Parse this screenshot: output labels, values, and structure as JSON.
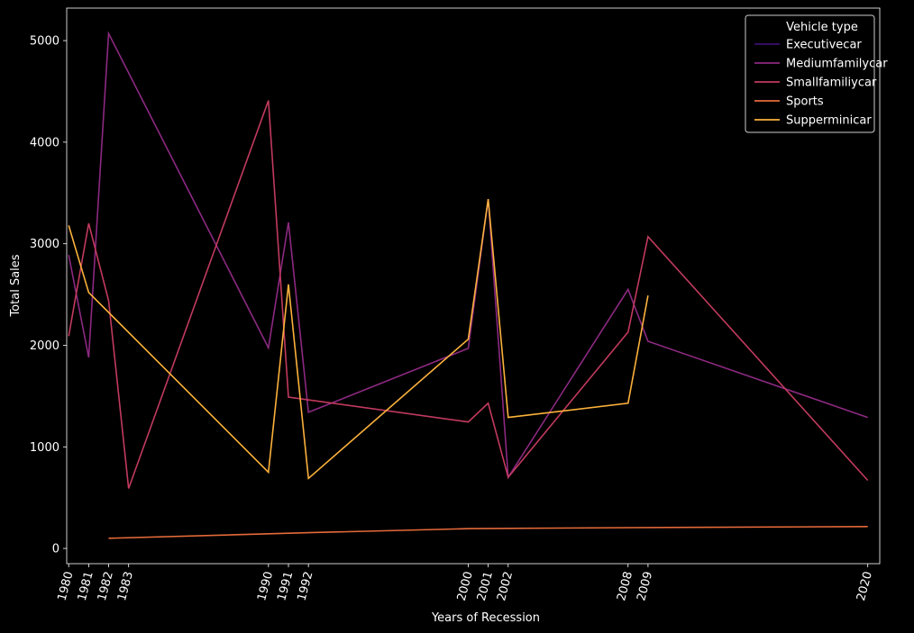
{
  "chart_data": {
    "type": "line",
    "title": "",
    "xlabel": "Years of Recession",
    "ylabel": "Total Sales",
    "x_ticks": [
      1980,
      1981,
      1982,
      1983,
      1990,
      1991,
      1992,
      2000,
      2001,
      2002,
      2008,
      2009,
      2020
    ],
    "y_ticks": [
      0,
      1000,
      2000,
      3000,
      4000,
      5000
    ],
    "xlim": [
      1979.9,
      2020.6
    ],
    "ylim": [
      -150,
      5320
    ],
    "grid": false,
    "legend_title": "Vehicle type",
    "legend_position": "top-right",
    "series": [
      {
        "name": "Executivecar",
        "color": "#3b0f70",
        "x": [],
        "y": []
      },
      {
        "name": "Mediumfamilycar",
        "color": "#8c2981",
        "x": [
          1980,
          1981,
          1982,
          1990,
          1991,
          1992,
          2000,
          2001,
          2002,
          2008,
          2009,
          2020
        ],
        "y": [
          2890,
          1880,
          5070,
          1975,
          3210,
          1340,
          1970,
          3440,
          700,
          2550,
          2040,
          1290
        ]
      },
      {
        "name": "Smallfamiliycar",
        "color": "#c13a5e",
        "x": [
          1980,
          1981,
          1982,
          1983,
          1990,
          1991,
          2000,
          2001,
          2002,
          2008,
          2009,
          2020
        ],
        "y": [
          2090,
          3200,
          2440,
          590,
          4410,
          1490,
          1245,
          1430,
          700,
          2130,
          3070,
          670
        ]
      },
      {
        "name": "Sports",
        "color": "#e66a3a",
        "x": [
          1982,
          1992,
          2000,
          2008,
          2020
        ],
        "y": [
          100,
          155,
          195,
          205,
          215
        ]
      },
      {
        "name": "Supperminicar",
        "color": "#fbb13c",
        "x": [
          1980,
          1981,
          1990,
          1991,
          1992,
          2000,
          2001,
          2002,
          2008,
          2009
        ],
        "y": [
          3180,
          2520,
          750,
          2600,
          690,
          2060,
          3440,
          1290,
          1430,
          2490
        ]
      }
    ]
  }
}
